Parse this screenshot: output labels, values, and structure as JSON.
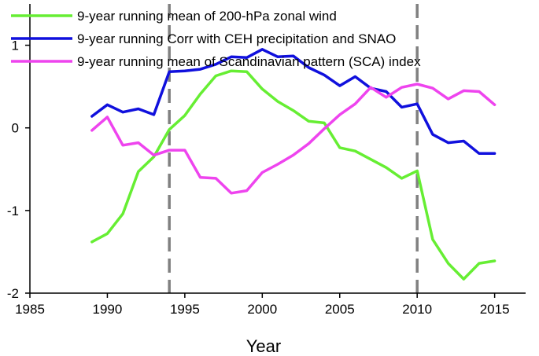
{
  "chart_data": {
    "type": "line",
    "title": "",
    "xlabel": "Year",
    "ylabel": "",
    "xlim": [
      1985,
      2017
    ],
    "ylim": [
      -2,
      1.5
    ],
    "xticks": [
      "1985",
      "1990",
      "1995",
      "2000",
      "2005",
      "2010",
      "2015"
    ],
    "yticks": [
      "-2",
      "-1",
      "0",
      "1"
    ],
    "grid": false,
    "legend_position": "top-left",
    "vlines": [
      1994,
      2010
    ],
    "vline_color": "#808080",
    "series": [
      {
        "name": "9-year running mean of 200-hPa zonal wind",
        "color": "#66ee33",
        "x": [
          1989,
          1990,
          1991,
          1992,
          1993,
          1994,
          1995,
          1996,
          1997,
          1998,
          1999,
          2000,
          2001,
          2002,
          2003,
          2004,
          2005,
          2006,
          2007,
          2008,
          2009,
          2010,
          2011,
          2012,
          2013,
          2014,
          2015
        ],
        "values": [
          -1.38,
          -1.28,
          -1.04,
          -0.53,
          -0.35,
          -0.02,
          0.15,
          0.41,
          0.63,
          0.69,
          0.68,
          0.47,
          0.32,
          0.21,
          0.08,
          0.06,
          -0.24,
          -0.28,
          -0.38,
          -0.48,
          -0.61,
          -0.52,
          -1.35,
          -1.64,
          -1.83,
          -1.64,
          -1.61
        ]
      },
      {
        "name": "9-year running Corr with CEH precipitation and SNAO",
        "color": "#1010dd",
        "x": [
          1989,
          1990,
          1991,
          1992,
          1993,
          1994,
          1995,
          1996,
          1997,
          1998,
          1999,
          2000,
          2001,
          2002,
          2003,
          2004,
          2005,
          2006,
          2007,
          2008,
          2009,
          2010,
          2011,
          2012,
          2013,
          2014,
          2015
        ],
        "values": [
          0.14,
          0.28,
          0.19,
          0.23,
          0.16,
          0.68,
          0.69,
          0.71,
          0.77,
          0.86,
          0.85,
          0.95,
          0.86,
          0.87,
          0.73,
          0.64,
          0.51,
          0.62,
          0.48,
          0.44,
          0.25,
          0.29,
          -0.08,
          -0.18,
          -0.16,
          -0.31,
          -0.31
        ]
      },
      {
        "name": "9-year running mean of Scandinavian pattern (SCA) index",
        "color": "#ee44ee",
        "x": [
          1989,
          1990,
          1991,
          1992,
          1993,
          1994,
          1995,
          1996,
          1997,
          1998,
          1999,
          2000,
          2001,
          2002,
          2003,
          2004,
          2005,
          2006,
          2007,
          2008,
          2009,
          2010,
          2011,
          2012,
          2013,
          2014,
          2015
        ],
        "values": [
          -0.03,
          0.13,
          -0.21,
          -0.18,
          -0.33,
          -0.27,
          -0.27,
          -0.6,
          -0.61,
          -0.79,
          -0.76,
          -0.54,
          -0.44,
          -0.33,
          -0.19,
          -0.01,
          0.16,
          0.29,
          0.49,
          0.37,
          0.49,
          0.53,
          0.48,
          0.35,
          0.45,
          0.44,
          0.28
        ]
      }
    ]
  }
}
